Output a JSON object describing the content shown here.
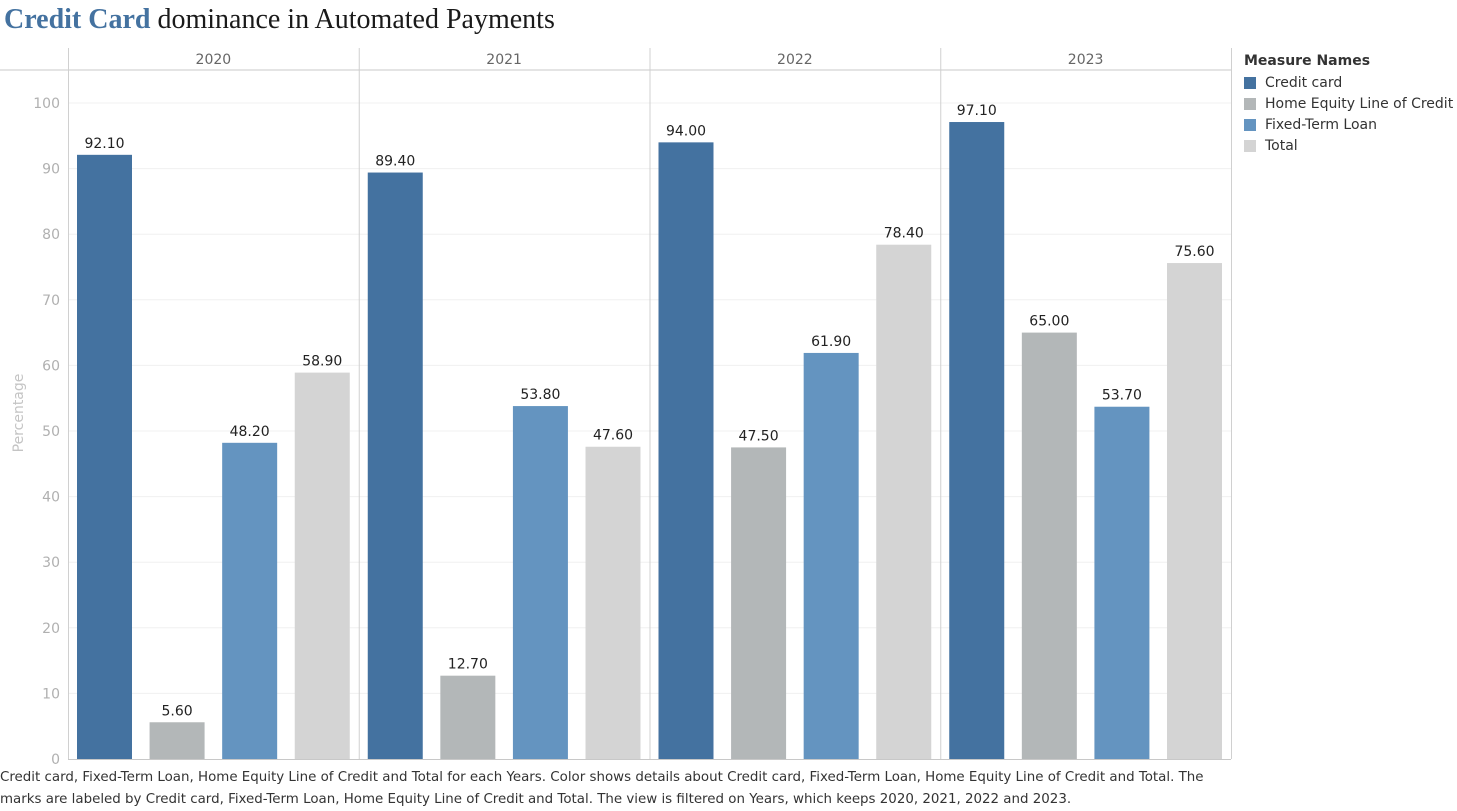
{
  "title": {
    "highlight": "Credit Card",
    "rest": " dominance in Automated Payments",
    "highlight_color": "#4472a0"
  },
  "legend": {
    "title": "Measure Names",
    "items": [
      {
        "label": "Credit card",
        "color": "#4472a0"
      },
      {
        "label": "Home Equity Line of Credit",
        "color": "#b3b7b8"
      },
      {
        "label": "Fixed-Term Loan",
        "color": "#6494c0"
      },
      {
        "label": "Total",
        "color": "#d4d4d4"
      }
    ]
  },
  "caption": "Credit card, Fixed-Term Loan, Home Equity Line of Credit and Total for each Years.  Color shows details about Credit card, Fixed-Term Loan, Home Equity Line of Credit and Total.  The marks are labeled by Credit card, Fixed-Term Loan, Home Equity Line of Credit and Total. The view is filtered on Years, which keeps 2020, 2021, 2022 and 2023.",
  "chart_data": {
    "type": "bar",
    "categories": [
      "2020",
      "2021",
      "2022",
      "2023"
    ],
    "series": [
      {
        "name": "Credit card",
        "color": "#4472a0",
        "values": [
          92.1,
          89.4,
          94.0,
          97.1
        ]
      },
      {
        "name": "Home Equity Line of Credit",
        "color": "#b3b7b8",
        "values": [
          5.6,
          12.7,
          47.5,
          65.0
        ]
      },
      {
        "name": "Fixed-Term Loan",
        "color": "#6494c0",
        "values": [
          48.2,
          53.8,
          61.9,
          53.7
        ]
      },
      {
        "name": "Total",
        "color": "#d4d4d4",
        "values": [
          58.9,
          47.6,
          78.4,
          75.6
        ]
      }
    ],
    "ylabel": "Percentage",
    "ylim": [
      0,
      100
    ],
    "yticks": [
      "0",
      "10",
      "20",
      "30",
      "40",
      "50",
      "60",
      "70",
      "80",
      "90",
      "100"
    ],
    "grid": true,
    "legend_position": "right"
  }
}
